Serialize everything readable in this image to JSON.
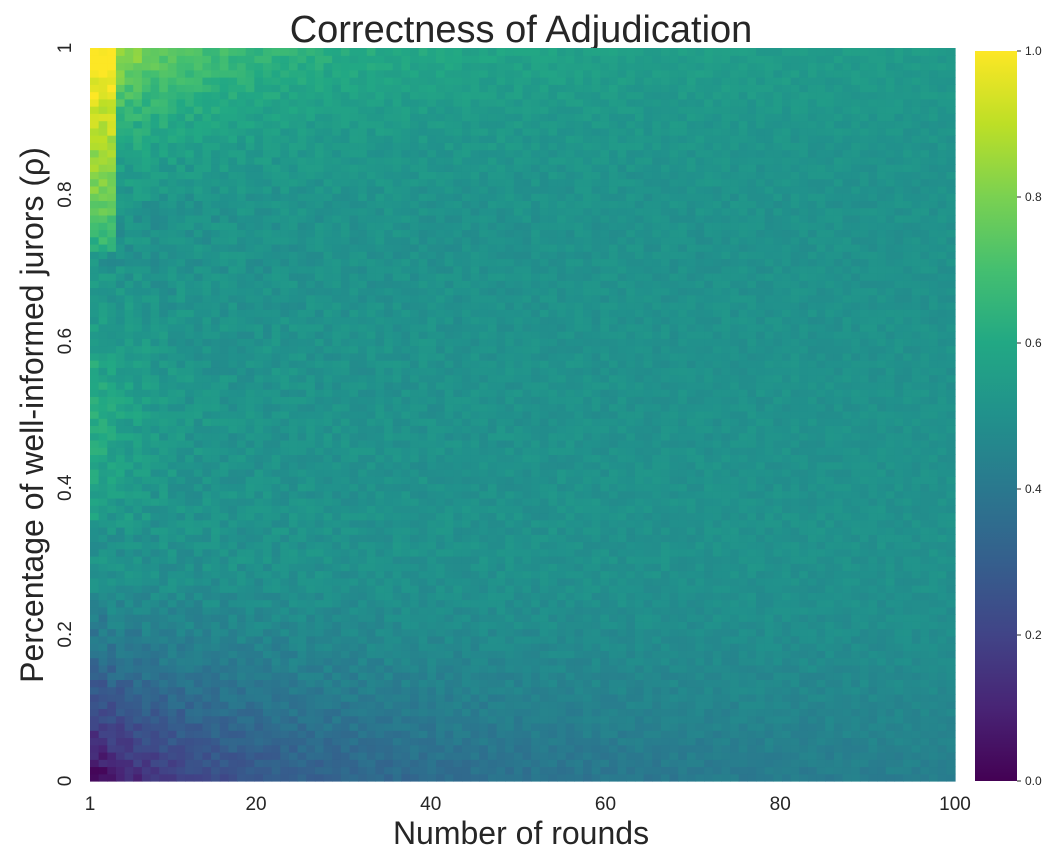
{
  "chart_data": {
    "type": "heatmap",
    "title": "Correctness of Adjudication",
    "xlabel": "Number of rounds",
    "ylabel": "Percentage of well-informed jurors (ρ)",
    "x_range": [
      1,
      100
    ],
    "y_range": [
      0,
      1
    ],
    "x_ticks": [
      {
        "value": 1,
        "label": "1"
      },
      {
        "value": 20,
        "label": "20"
      },
      {
        "value": 40,
        "label": "40"
      },
      {
        "value": 60,
        "label": "60"
      },
      {
        "value": 80,
        "label": "80"
      },
      {
        "value": 100,
        "label": "100"
      }
    ],
    "y_ticks": [
      {
        "value": 0,
        "label": "0"
      },
      {
        "value": 0.2,
        "label": "0.2"
      },
      {
        "value": 0.4,
        "label": "0.4"
      },
      {
        "value": 0.6,
        "label": "0.6"
      },
      {
        "value": 0.8,
        "label": "0.8"
      },
      {
        "value": 1,
        "label": "1"
      }
    ],
    "colorbar": {
      "colormap": "viridis",
      "range": [
        0,
        1
      ],
      "ticks": [
        "0.0",
        "0.2",
        "0.4",
        "0.6",
        "0.8",
        "1.0"
      ]
    },
    "grid_resolution": {
      "rounds": 100,
      "rho_steps": 101
    },
    "value_pattern": {
      "converged_value": 0.5,
      "top_left_max": 1.0,
      "bottom_left_min": 0.0,
      "description_samples": [
        {
          "rounds": 1,
          "rho": 1.0,
          "value": 1.0
        },
        {
          "rounds": 1,
          "rho": 0.8,
          "value": 0.9
        },
        {
          "rounds": 1,
          "rho": 0.65,
          "value": 0.62
        },
        {
          "rounds": 1,
          "rho": 0.4,
          "value": 0.55
        },
        {
          "rounds": 1,
          "rho": 0.2,
          "value": 0.12
        },
        {
          "rounds": 1,
          "rho": 0.0,
          "value": 0.0
        },
        {
          "rounds": 20,
          "rho": 1.0,
          "value": 0.72
        },
        {
          "rounds": 20,
          "rho": 0.0,
          "value": 0.2
        },
        {
          "rounds": 50,
          "rho": 1.0,
          "value": 0.62
        },
        {
          "rounds": 50,
          "rho": 0.0,
          "value": 0.35
        },
        {
          "rounds": 100,
          "rho": 1.0,
          "value": 0.58
        },
        {
          "rounds": 100,
          "rho": 0.0,
          "value": 0.42
        },
        {
          "rounds": 100,
          "rho": 0.5,
          "value": 0.5
        }
      ]
    }
  }
}
